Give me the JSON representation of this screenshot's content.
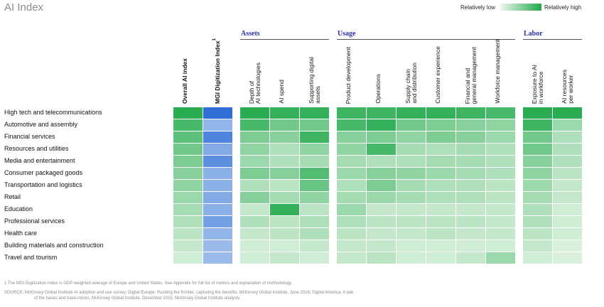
{
  "chart_data": {
    "type": "heatmap",
    "title": "AI Index",
    "legend": {
      "low_label": "Relatively low",
      "high_label": "Relatively high",
      "placement": "top-right"
    },
    "groups": [
      {
        "name": "Assets",
        "columns": [
          2,
          3,
          4
        ]
      },
      {
        "name": "Usage",
        "columns": [
          5,
          6,
          7,
          8,
          9,
          10
        ]
      },
      {
        "name": "Labor",
        "columns": [
          11,
          12
        ]
      }
    ],
    "columns": [
      "Overall AI index",
      "MGI Digitization Index",
      "Depth of AI technologies",
      "AI spend",
      "Supporting digital assets",
      "Product development",
      "Operations",
      "Supply chain and distribution",
      "Customer experience",
      "Financial and general management",
      "Workforce management",
      "Exposure to AI in workforce",
      "AI resources per worker"
    ],
    "column_footnote_marker": {
      "column": 1,
      "marker": "1"
    },
    "rows": [
      "High tech and telecommunications",
      "Automotive and assembly",
      "Financial services",
      "Resources and utilities",
      "Media and entertainment",
      "Consumer packaged goods",
      "Transportation and logistics",
      "Retail",
      "Education",
      "Professional services",
      "Health care",
      "Building materials and construction",
      "Travel and tourism"
    ],
    "scale": [
      0,
      1
    ],
    "values": [
      [
        0.95,
        1.0,
        0.95,
        0.9,
        0.9,
        0.85,
        0.85,
        0.9,
        0.9,
        0.85,
        0.8,
        0.95,
        0.95
      ],
      [
        0.8,
        0.35,
        0.8,
        0.6,
        0.6,
        0.8,
        0.9,
        0.6,
        0.55,
        0.5,
        0.45,
        0.85,
        0.4
      ],
      [
        0.7,
        0.8,
        0.55,
        0.5,
        0.85,
        0.5,
        0.55,
        0.45,
        0.55,
        0.5,
        0.4,
        0.6,
        0.3
      ],
      [
        0.6,
        0.45,
        0.45,
        0.3,
        0.45,
        0.45,
        0.8,
        0.35,
        0.3,
        0.35,
        0.3,
        0.6,
        0.3
      ],
      [
        0.55,
        0.7,
        0.4,
        0.3,
        0.35,
        0.35,
        0.3,
        0.3,
        0.35,
        0.35,
        0.3,
        0.5,
        0.3
      ],
      [
        0.5,
        0.4,
        0.55,
        0.5,
        0.75,
        0.4,
        0.5,
        0.45,
        0.4,
        0.35,
        0.3,
        0.45,
        0.25
      ],
      [
        0.45,
        0.4,
        0.3,
        0.25,
        0.65,
        0.3,
        0.55,
        0.35,
        0.3,
        0.3,
        0.25,
        0.4,
        0.2
      ],
      [
        0.4,
        0.45,
        0.5,
        0.35,
        0.45,
        0.35,
        0.4,
        0.35,
        0.3,
        0.3,
        0.25,
        0.35,
        0.2
      ],
      [
        0.35,
        0.4,
        0.2,
        0.9,
        0.25,
        0.4,
        0.2,
        0.2,
        0.2,
        0.2,
        0.2,
        0.3,
        0.15
      ],
      [
        0.3,
        0.55,
        0.3,
        0.25,
        0.3,
        0.3,
        0.25,
        0.25,
        0.25,
        0.25,
        0.2,
        0.3,
        0.15
      ],
      [
        0.25,
        0.35,
        0.2,
        0.25,
        0.3,
        0.25,
        0.2,
        0.2,
        0.25,
        0.2,
        0.2,
        0.25,
        0.15
      ],
      [
        0.2,
        0.3,
        0.15,
        0.15,
        0.2,
        0.2,
        0.2,
        0.15,
        0.15,
        0.15,
        0.15,
        0.2,
        0.1
      ],
      [
        0.15,
        0.3,
        0.15,
        0.2,
        0.15,
        0.2,
        0.25,
        0.15,
        0.15,
        0.2,
        0.4,
        0.15,
        0.1
      ]
    ],
    "colors": {
      "green_low": "#eef8ec",
      "green_high": "#1fa84a",
      "blue_low": "#c9daf3",
      "blue_high": "#2f6fd6",
      "group_label": "#2b2fa8"
    }
  },
  "footnotes": {
    "note1": "1  The MGI Digitization Index is GDP weighted average of Europe and United States. See Appendix for full list of metrics and explanation of methodology.",
    "source_line1": "SOURCE:  McKinsey Global Institute AI adoption and use survey; Digital Europe: Pushing the frontier, capturing the benefits, McKinsey Global Institute, June 2016; Digital America: A tale",
    "source_line2": "of the haves and have-mores, McKinsey Global Institute, December 2015; McKinsey Global Institute analysis"
  }
}
